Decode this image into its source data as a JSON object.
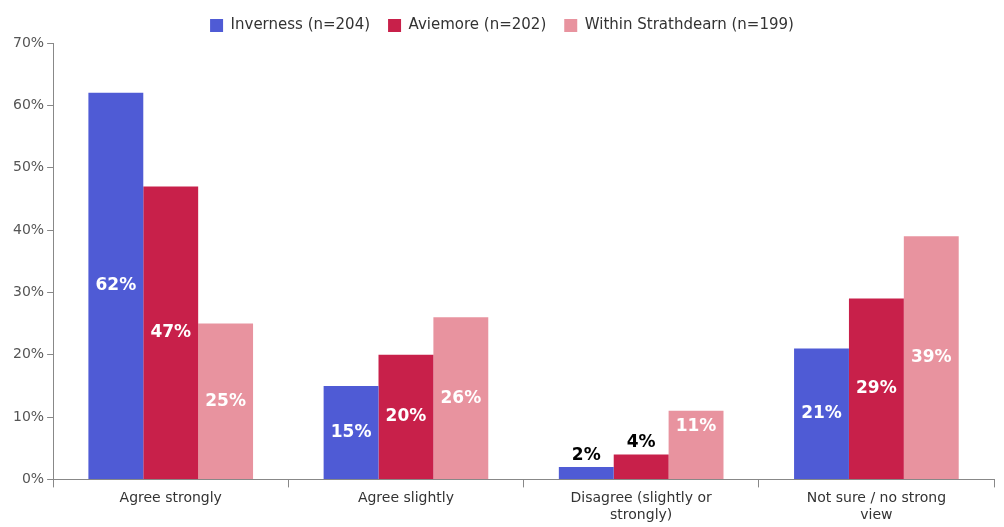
{
  "chart_data": {
    "type": "bar",
    "categories": [
      "Agree strongly",
      "Agree slightly",
      "Disagree (slightly or strongly)",
      "Not sure / no strong view"
    ],
    "series": [
      {
        "name": "Inverness (n=204)",
        "color": "#4f5bd5",
        "values": [
          62,
          15,
          2,
          21
        ],
        "value_labels": [
          "62%",
          "15%",
          "2%",
          "21%"
        ]
      },
      {
        "name": "Aviemore (n=202)",
        "color": "#c8204a",
        "values": [
          47,
          20,
          4,
          29
        ],
        "value_labels": [
          "47%",
          "20%",
          "4%",
          "29%"
        ]
      },
      {
        "name": "Within Strathdearn (n=199)",
        "color": "#e8939f",
        "values": [
          25,
          26,
          11,
          39
        ],
        "value_labels": [
          "25%",
          "26%",
          "11%",
          "39%"
        ]
      }
    ],
    "ylim": [
      0,
      70
    ],
    "yticks": [
      {
        "value": 0,
        "label": "0%"
      },
      {
        "value": 10,
        "label": "10%"
      },
      {
        "value": 20,
        "label": "20%"
      },
      {
        "value": 30,
        "label": "30%"
      },
      {
        "value": 40,
        "label": "40%"
      },
      {
        "value": 50,
        "label": "50%"
      },
      {
        "value": 60,
        "label": "60%"
      },
      {
        "value": 70,
        "label": "70%"
      }
    ],
    "legend": "top",
    "grid": false
  }
}
